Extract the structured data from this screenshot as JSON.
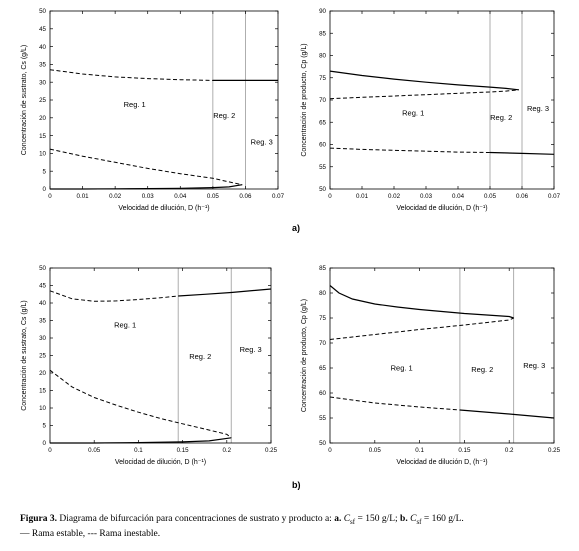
{
  "figure": {
    "panel_labels": [
      "a)",
      "b)"
    ],
    "caption": {
      "figure_label": "Figura 3.",
      "text": "Diagrama de bifurcación para concentraciones de sustrato y producto a:",
      "a_bold": "a.",
      "a_value": "C",
      "a_sub": "sf",
      "a_text": " = 150 g/L;",
      "b_bold": "b.",
      "b_value": "C",
      "b_sub": "sf",
      "b_text": " = 160 g/L.",
      "legend": "— Rama estable, --- Rama inestable."
    }
  },
  "chart_data": [
    {
      "id": "a-left",
      "type": "line",
      "xlabel": "Velocidad de dilución, D (h⁻¹)",
      "ylabel": "Concentración de sustrato, Cs (g/L)",
      "xlim": [
        0,
        0.07
      ],
      "ylim": [
        0,
        50
      ],
      "xticks": [
        "0",
        "0.01",
        "0.02",
        "0.03",
        "0.04",
        "0.05",
        "0.06",
        "0.07"
      ],
      "yticks": [
        "0",
        "5",
        "10",
        "15",
        "20",
        "25",
        "30",
        "35",
        "40",
        "45",
        "50"
      ],
      "vlines": [
        0.05,
        0.06
      ],
      "region_labels": [
        {
          "text": "Reg. 1",
          "x": 0.026,
          "y": 23
        },
        {
          "text": "Reg. 2",
          "x": 0.0535,
          "y": 20
        },
        {
          "text": "Reg. 3",
          "x": 0.065,
          "y": 12.5
        }
      ],
      "series": [
        {
          "style": "dashed",
          "x": [
            0,
            0.01,
            0.02,
            0.03,
            0.04,
            0.05
          ],
          "y": [
            33.5,
            32.3,
            31.5,
            31.0,
            30.7,
            30.5
          ]
        },
        {
          "style": "solid",
          "x": [
            0.05,
            0.055,
            0.06,
            0.065,
            0.07
          ],
          "y": [
            30.5,
            30.5,
            30.5,
            30.5,
            30.5
          ]
        },
        {
          "style": "dashed",
          "x": [
            0,
            0.01,
            0.02,
            0.03,
            0.04,
            0.05,
            0.055,
            0.059
          ],
          "y": [
            11.2,
            9.2,
            7.5,
            5.8,
            4.3,
            3.0,
            2.0,
            1.2
          ]
        },
        {
          "style": "solid",
          "x": [
            0,
            0.01,
            0.02,
            0.03,
            0.04,
            0.05,
            0.055,
            0.059
          ],
          "y": [
            0,
            0,
            0.05,
            0.1,
            0.2,
            0.4,
            0.6,
            1.2
          ]
        }
      ]
    },
    {
      "id": "a-right",
      "type": "line",
      "xlabel": "Velocidad de dilución, D (h⁻¹)",
      "ylabel": "Concentración de producto, Cp (g/L)",
      "xlim": [
        0,
        0.07
      ],
      "ylim": [
        50,
        90
      ],
      "xticks": [
        "0",
        "0.01",
        "0.02",
        "0.03",
        "0.04",
        "0.05",
        "0.06",
        "0.07"
      ],
      "yticks": [
        "50",
        "55",
        "60",
        "65",
        "70",
        "75",
        "80",
        "85",
        "90"
      ],
      "vlines": [
        0.05,
        0.06
      ],
      "region_labels": [
        {
          "text": "Reg. 1",
          "x": 0.026,
          "y": 66.5
        },
        {
          "text": "Reg. 2",
          "x": 0.0535,
          "y": 65.5
        },
        {
          "text": "Reg. 3",
          "x": 0.065,
          "y": 67.5
        }
      ],
      "series": [
        {
          "style": "solid",
          "x": [
            0,
            0.01,
            0.02,
            0.03,
            0.04,
            0.05,
            0.055,
            0.059
          ],
          "y": [
            76.5,
            75.5,
            74.7,
            74.0,
            73.4,
            72.9,
            72.6,
            72.3
          ]
        },
        {
          "style": "dashed",
          "x": [
            0,
            0.01,
            0.02,
            0.03,
            0.04,
            0.05,
            0.055,
            0.059
          ],
          "y": [
            70.3,
            70.6,
            70.9,
            71.2,
            71.5,
            71.8,
            72.0,
            72.3
          ]
        },
        {
          "style": "dashed",
          "x": [
            0,
            0.01,
            0.02,
            0.03,
            0.04,
            0.05
          ],
          "y": [
            59.2,
            58.9,
            58.7,
            58.5,
            58.3,
            58.2
          ]
        },
        {
          "style": "solid",
          "x": [
            0.05,
            0.06,
            0.07
          ],
          "y": [
            58.2,
            58.0,
            57.8
          ]
        }
      ]
    },
    {
      "id": "b-left",
      "type": "line",
      "xlabel": "Velocidad de dilución, D (h⁻¹)",
      "ylabel": "Concentración de sustrato, Cs (g/L)",
      "xlim": [
        0,
        0.25
      ],
      "ylim": [
        0,
        50
      ],
      "xticks": [
        "0",
        "0.05",
        "0.1",
        "0.15",
        "0.2",
        "0.25"
      ],
      "yticks": [
        "0",
        "5",
        "10",
        "15",
        "20",
        "25",
        "30",
        "35",
        "40",
        "45",
        "50"
      ],
      "vlines": [
        0.145,
        0.205
      ],
      "region_labels": [
        {
          "text": "Reg. 1",
          "x": 0.085,
          "y": 33
        },
        {
          "text": "Reg. 2",
          "x": 0.17,
          "y": 24
        },
        {
          "text": "Reg. 3",
          "x": 0.227,
          "y": 26
        }
      ],
      "series": [
        {
          "style": "dashed",
          "x": [
            0,
            0.025,
            0.05,
            0.075,
            0.1,
            0.125,
            0.145
          ],
          "y": [
            43.5,
            41.2,
            40.5,
            40.6,
            41.0,
            41.5,
            42.0
          ]
        },
        {
          "style": "solid",
          "x": [
            0.145,
            0.175,
            0.205,
            0.25
          ],
          "y": [
            42.0,
            42.5,
            43.0,
            44.0
          ]
        },
        {
          "style": "dashed",
          "x": [
            0,
            0.025,
            0.05,
            0.075,
            0.1,
            0.125,
            0.15,
            0.175,
            0.2,
            0.205
          ],
          "y": [
            20.8,
            16.0,
            13.0,
            10.8,
            8.8,
            7.0,
            5.5,
            4.0,
            2.5,
            1.5
          ]
        },
        {
          "style": "solid",
          "x": [
            0,
            0.05,
            0.1,
            0.15,
            0.18,
            0.205
          ],
          "y": [
            0,
            0,
            0.1,
            0.3,
            0.6,
            1.5
          ]
        }
      ]
    },
    {
      "id": "b-right",
      "type": "line",
      "xlabel": "Velocidad de dilución D, (h⁻¹)",
      "ylabel": "Concentración de producto, Cp (g/L)",
      "xlim": [
        0,
        0.25
      ],
      "ylim": [
        50,
        85
      ],
      "xticks": [
        "0",
        "0.05",
        "0.1",
        "0.15",
        "0.2",
        "0.25"
      ],
      "yticks": [
        "50",
        "55",
        "60",
        "65",
        "70",
        "75",
        "80",
        "85"
      ],
      "vlines": [
        0.145,
        0.205
      ],
      "region_labels": [
        {
          "text": "Reg. 1",
          "x": 0.08,
          "y": 64.5
        },
        {
          "text": "Reg. 2",
          "x": 0.17,
          "y": 64.2
        },
        {
          "text": "Reg. 3",
          "x": 0.228,
          "y": 65
        }
      ],
      "series": [
        {
          "style": "solid",
          "x": [
            0,
            0.01,
            0.025,
            0.05,
            0.075,
            0.1,
            0.125,
            0.15,
            0.175,
            0.2,
            0.205
          ],
          "y": [
            81.5,
            80.0,
            78.8,
            77.8,
            77.2,
            76.7,
            76.3,
            75.9,
            75.6,
            75.3,
            75.0
          ]
        },
        {
          "style": "dashed",
          "x": [
            0,
            0.05,
            0.1,
            0.15,
            0.2,
            0.205
          ],
          "y": [
            70.7,
            71.7,
            72.7,
            73.6,
            74.6,
            75.0
          ]
        },
        {
          "style": "dashed",
          "x": [
            0,
            0.05,
            0.1,
            0.145
          ],
          "y": [
            59.2,
            58.0,
            57.2,
            56.6
          ]
        },
        {
          "style": "solid",
          "x": [
            0.145,
            0.2,
            0.25
          ],
          "y": [
            56.6,
            55.8,
            55.0
          ]
        }
      ]
    }
  ]
}
